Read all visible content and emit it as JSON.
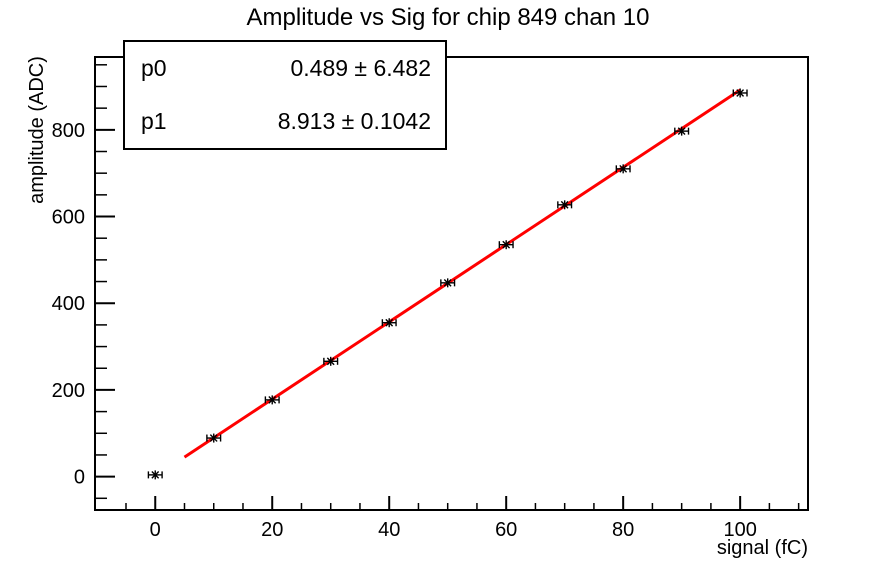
{
  "title": "Amplitude vs Sig for chip 849 chan 10",
  "stats_box": {
    "rows": [
      {
        "param": "p0",
        "value": "0.489 ± 6.482"
      },
      {
        "param": "p1",
        "value": "8.913 ± 0.1042"
      }
    ]
  },
  "chart_data": {
    "type": "scatter",
    "title": "Amplitude vs Sig for chip 849 chan 10",
    "xlabel": "signal (fC)",
    "ylabel": "amplitude (ADC)",
    "xlim": [
      -10.3,
      111.6
    ],
    "ylim": [
      -77,
      968
    ],
    "x_major_ticks": [
      0,
      20,
      40,
      60,
      80,
      100
    ],
    "x_minor_step": 5,
    "y_major_ticks": [
      0,
      200,
      400,
      600,
      800
    ],
    "y_minor_step": 50,
    "grid": false,
    "legend": "none",
    "series": [
      {
        "name": "data-points",
        "type": "scatter",
        "marker": "asterisk",
        "color": "#000000",
        "xerr": 1,
        "x": [
          0,
          10,
          20,
          30,
          40,
          50,
          60,
          70,
          80,
          90,
          100
        ],
        "y": [
          4,
          89,
          177,
          266,
          355,
          447,
          535,
          627,
          710,
          797,
          885
        ]
      },
      {
        "name": "linear-fit",
        "type": "line",
        "color": "#ff0000",
        "fit": {
          "p0": 0.489,
          "p1": 8.913,
          "x_start": 5,
          "x_end": 100
        }
      }
    ],
    "colors": {
      "fit_line": "#ff0000",
      "marker": "#000000",
      "frame": "#000000",
      "background": "#ffffff"
    }
  }
}
